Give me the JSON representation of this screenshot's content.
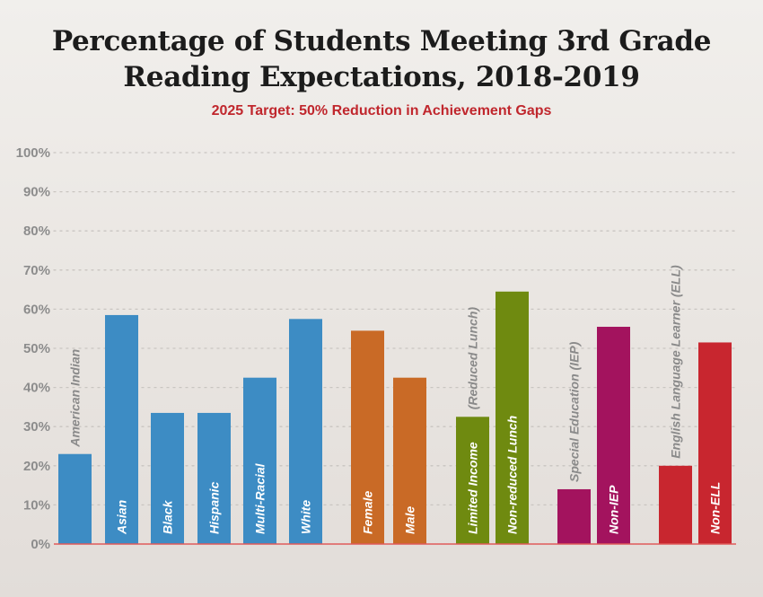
{
  "title_line1": "Percentage of Students Meeting 3rd Grade",
  "title_line2": "Reading Expectations, 2018-2019",
  "subtitle": "2025 Target: 50% Reduction in Achievement Gaps",
  "colors": {
    "race": "#3d8cc4",
    "gender": "#c96a26",
    "income": "#6f8a10",
    "iep": "#a3135e",
    "ell": "#c8262f",
    "tick_text": "#8c8c8c",
    "grid": "#c9c5c1",
    "axis": "#e05a5a"
  },
  "chart_data": {
    "type": "bar",
    "title": "Percentage of Students Meeting 3rd Grade Reading Expectations, 2018-2019",
    "subtitle": "2025 Target: 50% Reduction in Achievement Gaps",
    "ylim": [
      0,
      100
    ],
    "yticks": [
      "0%",
      "10%",
      "20%",
      "30%",
      "40%",
      "50%",
      "60%",
      "70%",
      "80%",
      "90%",
      "100%"
    ],
    "grid": true,
    "bars": [
      {
        "label": "American Indian",
        "value": 23,
        "group": "race"
      },
      {
        "label": "Asian",
        "value": 58.5,
        "group": "race"
      },
      {
        "label": "Black",
        "value": 33.5,
        "group": "race"
      },
      {
        "label": "Hispanic",
        "value": 33.5,
        "group": "race"
      },
      {
        "label": "Multi-Racial",
        "value": 42.5,
        "group": "race"
      },
      {
        "label": "White",
        "value": 57.5,
        "group": "race"
      },
      {
        "label": "Female",
        "value": 54.5,
        "group": "gender"
      },
      {
        "label": "Male",
        "value": 42.5,
        "group": "gender"
      },
      {
        "label": "Limited Income",
        "label_extra": "(Reduced Lunch)",
        "value": 32.5,
        "group": "income"
      },
      {
        "label": "Non-reduced Lunch",
        "value": 64.5,
        "group": "income"
      },
      {
        "label": "Special Education (IEP)",
        "value": 14,
        "group": "iep"
      },
      {
        "label": "Non-IEP",
        "value": 55.5,
        "group": "iep"
      },
      {
        "label": "English Language Learner (ELL)",
        "value": 20,
        "group": "ell"
      },
      {
        "label": "Non-ELL",
        "value": 51.5,
        "group": "ell"
      }
    ]
  }
}
